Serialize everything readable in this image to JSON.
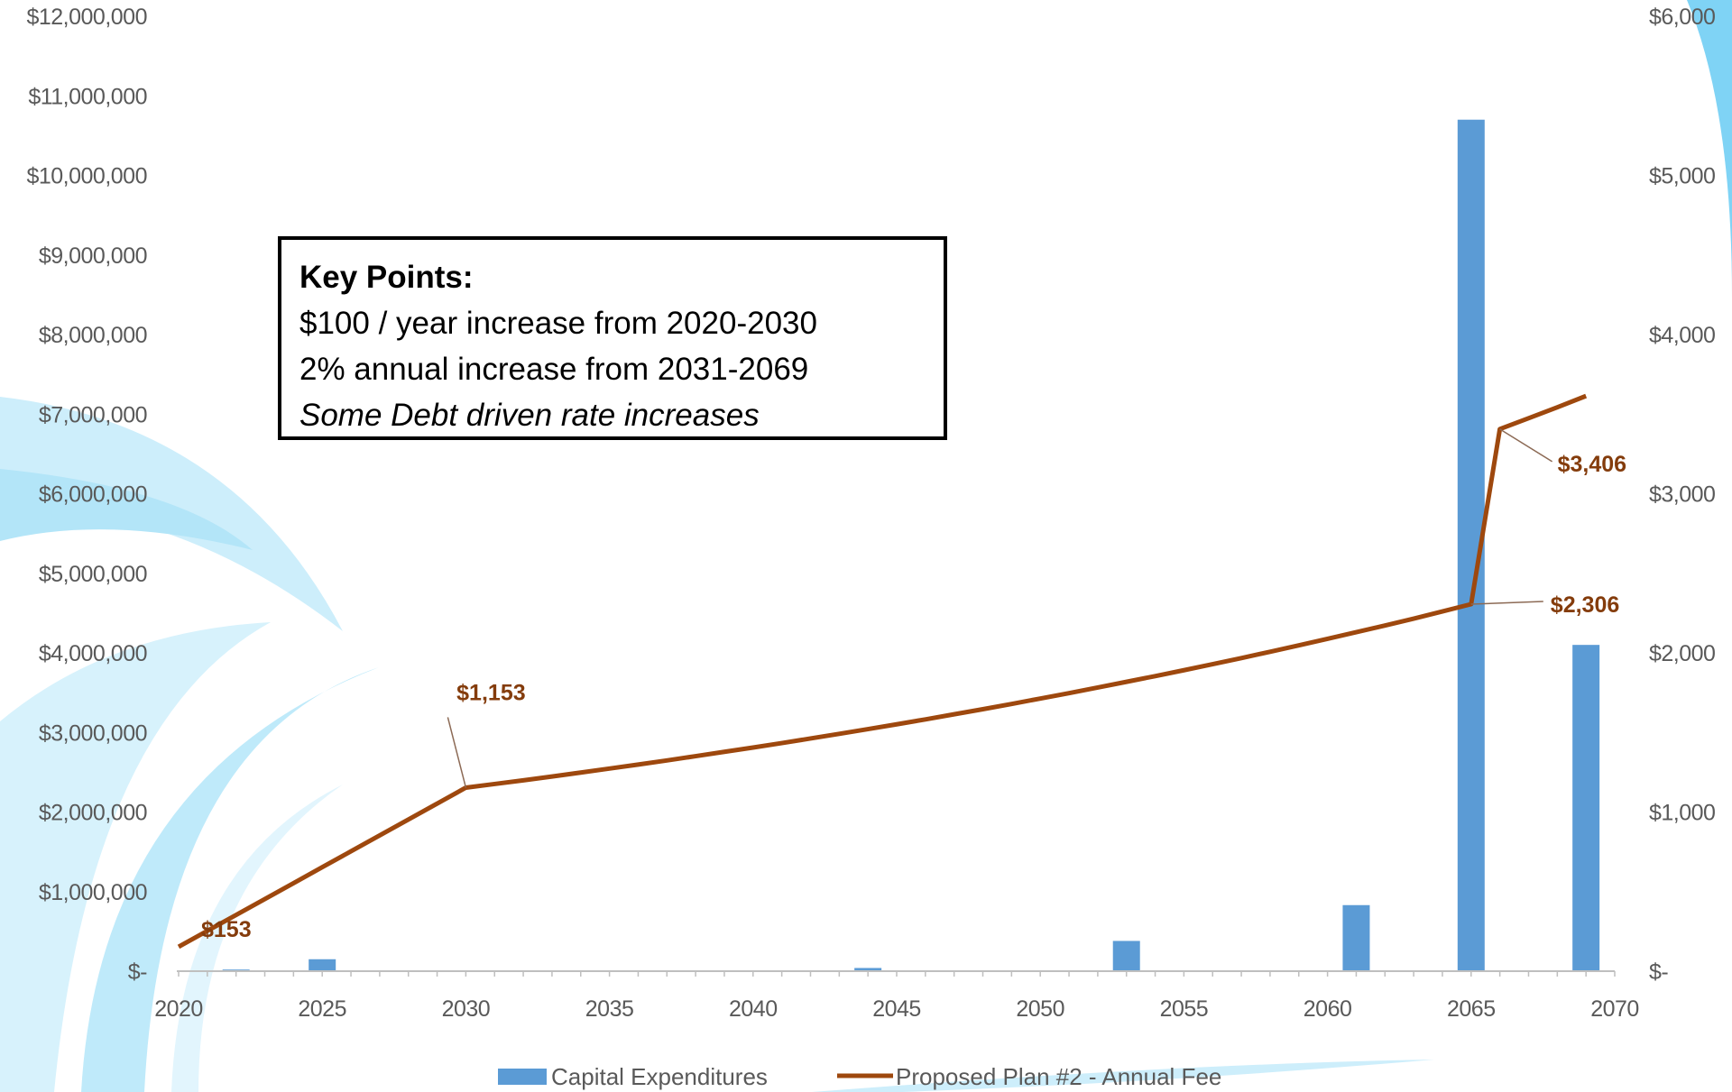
{
  "chart_data": {
    "type": "bar+line",
    "title": "",
    "categories": [
      2020,
      2021,
      2022,
      2023,
      2024,
      2025,
      2026,
      2027,
      2028,
      2029,
      2030,
      2031,
      2032,
      2033,
      2034,
      2035,
      2036,
      2037,
      2038,
      2039,
      2040,
      2041,
      2042,
      2043,
      2044,
      2045,
      2046,
      2047,
      2048,
      2049,
      2050,
      2051,
      2052,
      2053,
      2054,
      2055,
      2056,
      2057,
      2058,
      2059,
      2060,
      2061,
      2062,
      2063,
      2064,
      2065,
      2066,
      2067,
      2068,
      2069
    ],
    "x_ticks": [
      "2020",
      "2025",
      "2030",
      "2035",
      "2040",
      "2045",
      "2050",
      "2055",
      "2060",
      "2065",
      "2070"
    ],
    "x_range": [
      2020,
      2070
    ],
    "y_left": {
      "range": [
        0,
        12000000
      ],
      "ticks": [
        0,
        1000000,
        2000000,
        3000000,
        4000000,
        5000000,
        6000000,
        7000000,
        8000000,
        9000000,
        10000000,
        11000000,
        12000000
      ],
      "tick_labels": [
        "$-",
        "$1,000,000",
        "$2,000,000",
        "$3,000,000",
        "$4,000,000",
        "$5,000,000",
        "$6,000,000",
        "$7,000,000",
        "$8,000,000",
        "$9,000,000",
        "$10,000,000",
        "$11,000,000",
        "$12,000,000"
      ]
    },
    "y_right": {
      "range": [
        0,
        6000
      ],
      "ticks": [
        0,
        1000,
        2000,
        3000,
        4000,
        5000,
        6000
      ],
      "tick_labels": [
        "$-",
        "$1,000",
        "$2,000",
        "$3,000",
        "$4,000",
        "$5,000",
        "$6,000"
      ]
    },
    "grid": false,
    "legend_position": "bottom",
    "series": [
      {
        "name": "Capital Expenditures",
        "type": "bar",
        "axis": "left",
        "color": "#5b9bd5",
        "points": [
          {
            "x": 2022,
            "y": 20000
          },
          {
            "x": 2025,
            "y": 150000
          },
          {
            "x": 2044,
            "y": 40000
          },
          {
            "x": 2053,
            "y": 380000
          },
          {
            "x": 2061,
            "y": 830000
          },
          {
            "x": 2065,
            "y": 10700000
          },
          {
            "x": 2069,
            "y": 4100000
          }
        ]
      },
      {
        "name": "Proposed Plan #2 - Annual Fee",
        "type": "line",
        "axis": "right",
        "color": "#9e480e",
        "values": [
          153,
          253,
          353,
          453,
          553,
          653,
          753,
          853,
          953,
          1053,
          1153,
          1176,
          1199,
          1223,
          1248,
          1273,
          1298,
          1324,
          1351,
          1378,
          1405,
          1433,
          1462,
          1491,
          1521,
          1551,
          1582,
          1614,
          1646,
          1679,
          1713,
          1747,
          1782,
          1818,
          1854,
          1891,
          1929,
          1967,
          2007,
          2047,
          2088,
          2130,
          2172,
          2215,
          2260,
          2306,
          3406,
          3474,
          3543,
          3614
        ]
      }
    ],
    "annotations": [
      {
        "x": 2020,
        "value": 153,
        "label": "$153"
      },
      {
        "x": 2030,
        "value": 1153,
        "label": "$1,153"
      },
      {
        "x": 2065,
        "value": 2306,
        "label": "$2,306"
      },
      {
        "x": 2066,
        "value": 3406,
        "label": "$3,406"
      }
    ]
  },
  "key_points": {
    "title": "Key Points:",
    "lines": [
      "$100 / year increase from 2020-2030",
      "2% annual increase from 2031-2069"
    ],
    "italic_line": "Some Debt driven rate increases"
  },
  "colors": {
    "bar": "#5b9bd5",
    "line": "#9e480e",
    "label": "#843c0c",
    "background_swoosh": "#cdeefb",
    "axis": "#bfbfbf"
  }
}
